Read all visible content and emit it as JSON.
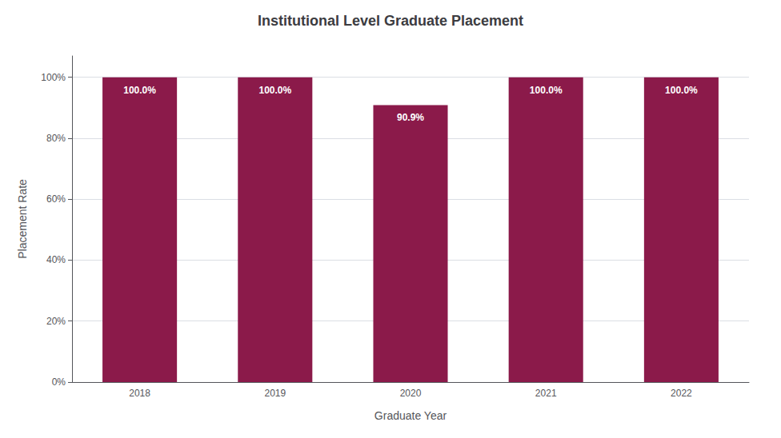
{
  "chart_data": {
    "type": "bar",
    "title": "Institutional Level Graduate Placement",
    "xlabel": "Graduate Year",
    "ylabel": "Placement Rate",
    "categories": [
      "2018",
      "2019",
      "2020",
      "2021",
      "2022"
    ],
    "values": [
      100.0,
      100.0,
      90.9,
      100.0,
      100.0
    ],
    "value_labels": [
      "100.0%",
      "100.0%",
      "90.9%",
      "100.0%",
      "100.0%"
    ],
    "data_labels": true,
    "color": "#8B1A4A",
    "ylim": [
      0,
      107
    ],
    "yticks": [
      {
        "value": 0,
        "label": "0%"
      },
      {
        "value": 20,
        "label": "20%"
      },
      {
        "value": 40,
        "label": "40%"
      },
      {
        "value": 60,
        "label": "60%"
      },
      {
        "value": 80,
        "label": "80%"
      },
      {
        "value": 100,
        "label": "100%"
      }
    ],
    "grid": true
  }
}
